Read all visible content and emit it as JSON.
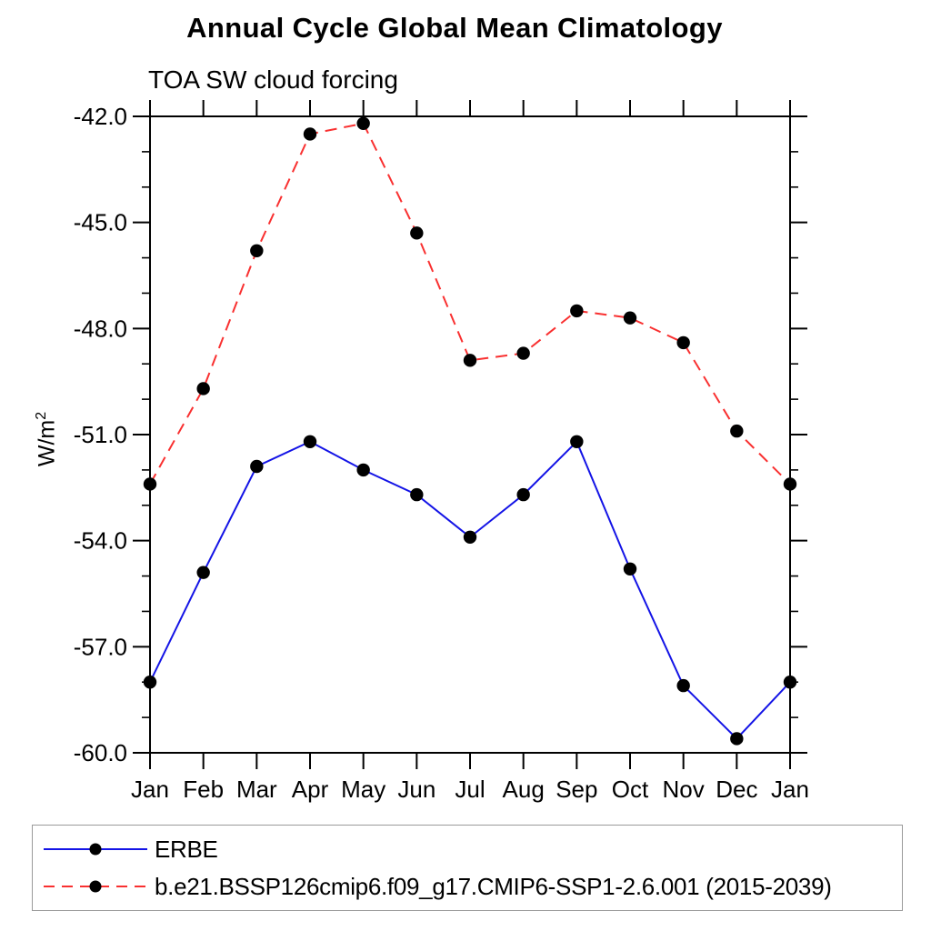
{
  "chart_data": {
    "type": "line",
    "title": "Annual Cycle Global Mean Climatology",
    "subtitle": "TOA SW cloud forcing",
    "xlabel": "",
    "ylabel": "W/m²",
    "ylabel_base": "W/m",
    "ylabel_sup": "2",
    "categories": [
      "Jan",
      "Feb",
      "Mar",
      "Apr",
      "May",
      "Jun",
      "Jul",
      "Aug",
      "Sep",
      "Oct",
      "Nov",
      "Dec",
      "Jan"
    ],
    "series": [
      {
        "name": "ERBE",
        "color": "#1414e6",
        "line_style": "solid",
        "marker": "filled-circle",
        "marker_color": "#000000",
        "values": [
          -58.0,
          -54.9,
          -51.9,
          -51.2,
          -52.0,
          -52.7,
          -53.9,
          -52.7,
          -51.2,
          -54.8,
          -58.1,
          -59.6,
          -58.0
        ]
      },
      {
        "name": "b.e21.BSSP126cmip6.f09_g17.CMIP6-SSP1-2.6.001 (2015-2039)",
        "color": "#f93030",
        "line_style": "dashed",
        "marker": "filled-circle",
        "marker_color": "#000000",
        "values": [
          -52.4,
          -49.7,
          -45.8,
          -42.5,
          -42.2,
          -45.3,
          -48.9,
          -48.7,
          -47.5,
          -47.7,
          -48.4,
          -50.9,
          -52.4
        ]
      }
    ],
    "ylim": [
      -60,
      -42
    ],
    "y_major_ticks": [
      -42,
      -45,
      -48,
      -51,
      -54,
      -57,
      -60
    ],
    "y_minor_step": 1,
    "y_tick_label_decimals": 1,
    "grid": false,
    "axis_color": "#000000",
    "legend_position": "bottom-left-box"
  }
}
